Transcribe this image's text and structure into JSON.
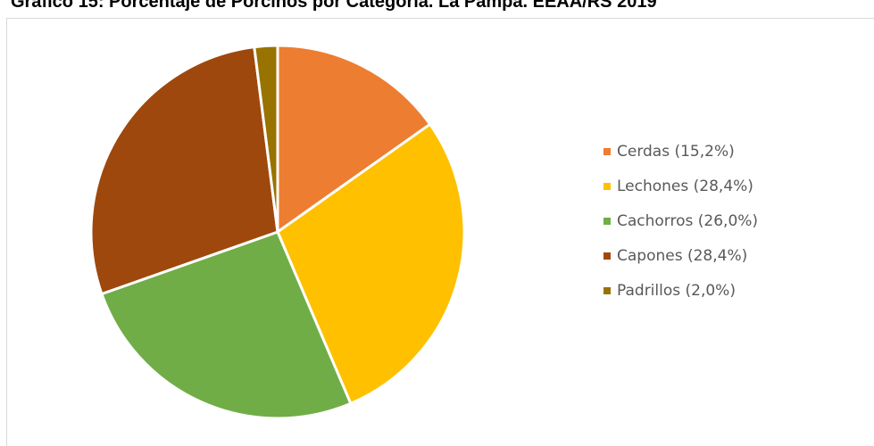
{
  "chart_data": {
    "type": "pie",
    "title": "Gráfico 15: Porcentaje de Porcinos por Categoría. La Pampa. EEAA/RS 2019",
    "categories": [
      "Cerdas",
      "Lechones",
      "Cachorros",
      "Capones",
      "Padrillos"
    ],
    "values": [
      15.2,
      28.4,
      26.0,
      28.4,
      2.0
    ],
    "unit": "%",
    "colors": [
      "#ED7D31",
      "#FFC000",
      "#70AD47",
      "#9E480E",
      "#997300"
    ],
    "legend": {
      "position": "right",
      "labels": [
        "Cerdas (15,2%)",
        "Lechones (28,4%)",
        "Cachorros (26,0%)",
        "Capones (28,4%)",
        "Padrillos (2,0%)"
      ]
    }
  }
}
